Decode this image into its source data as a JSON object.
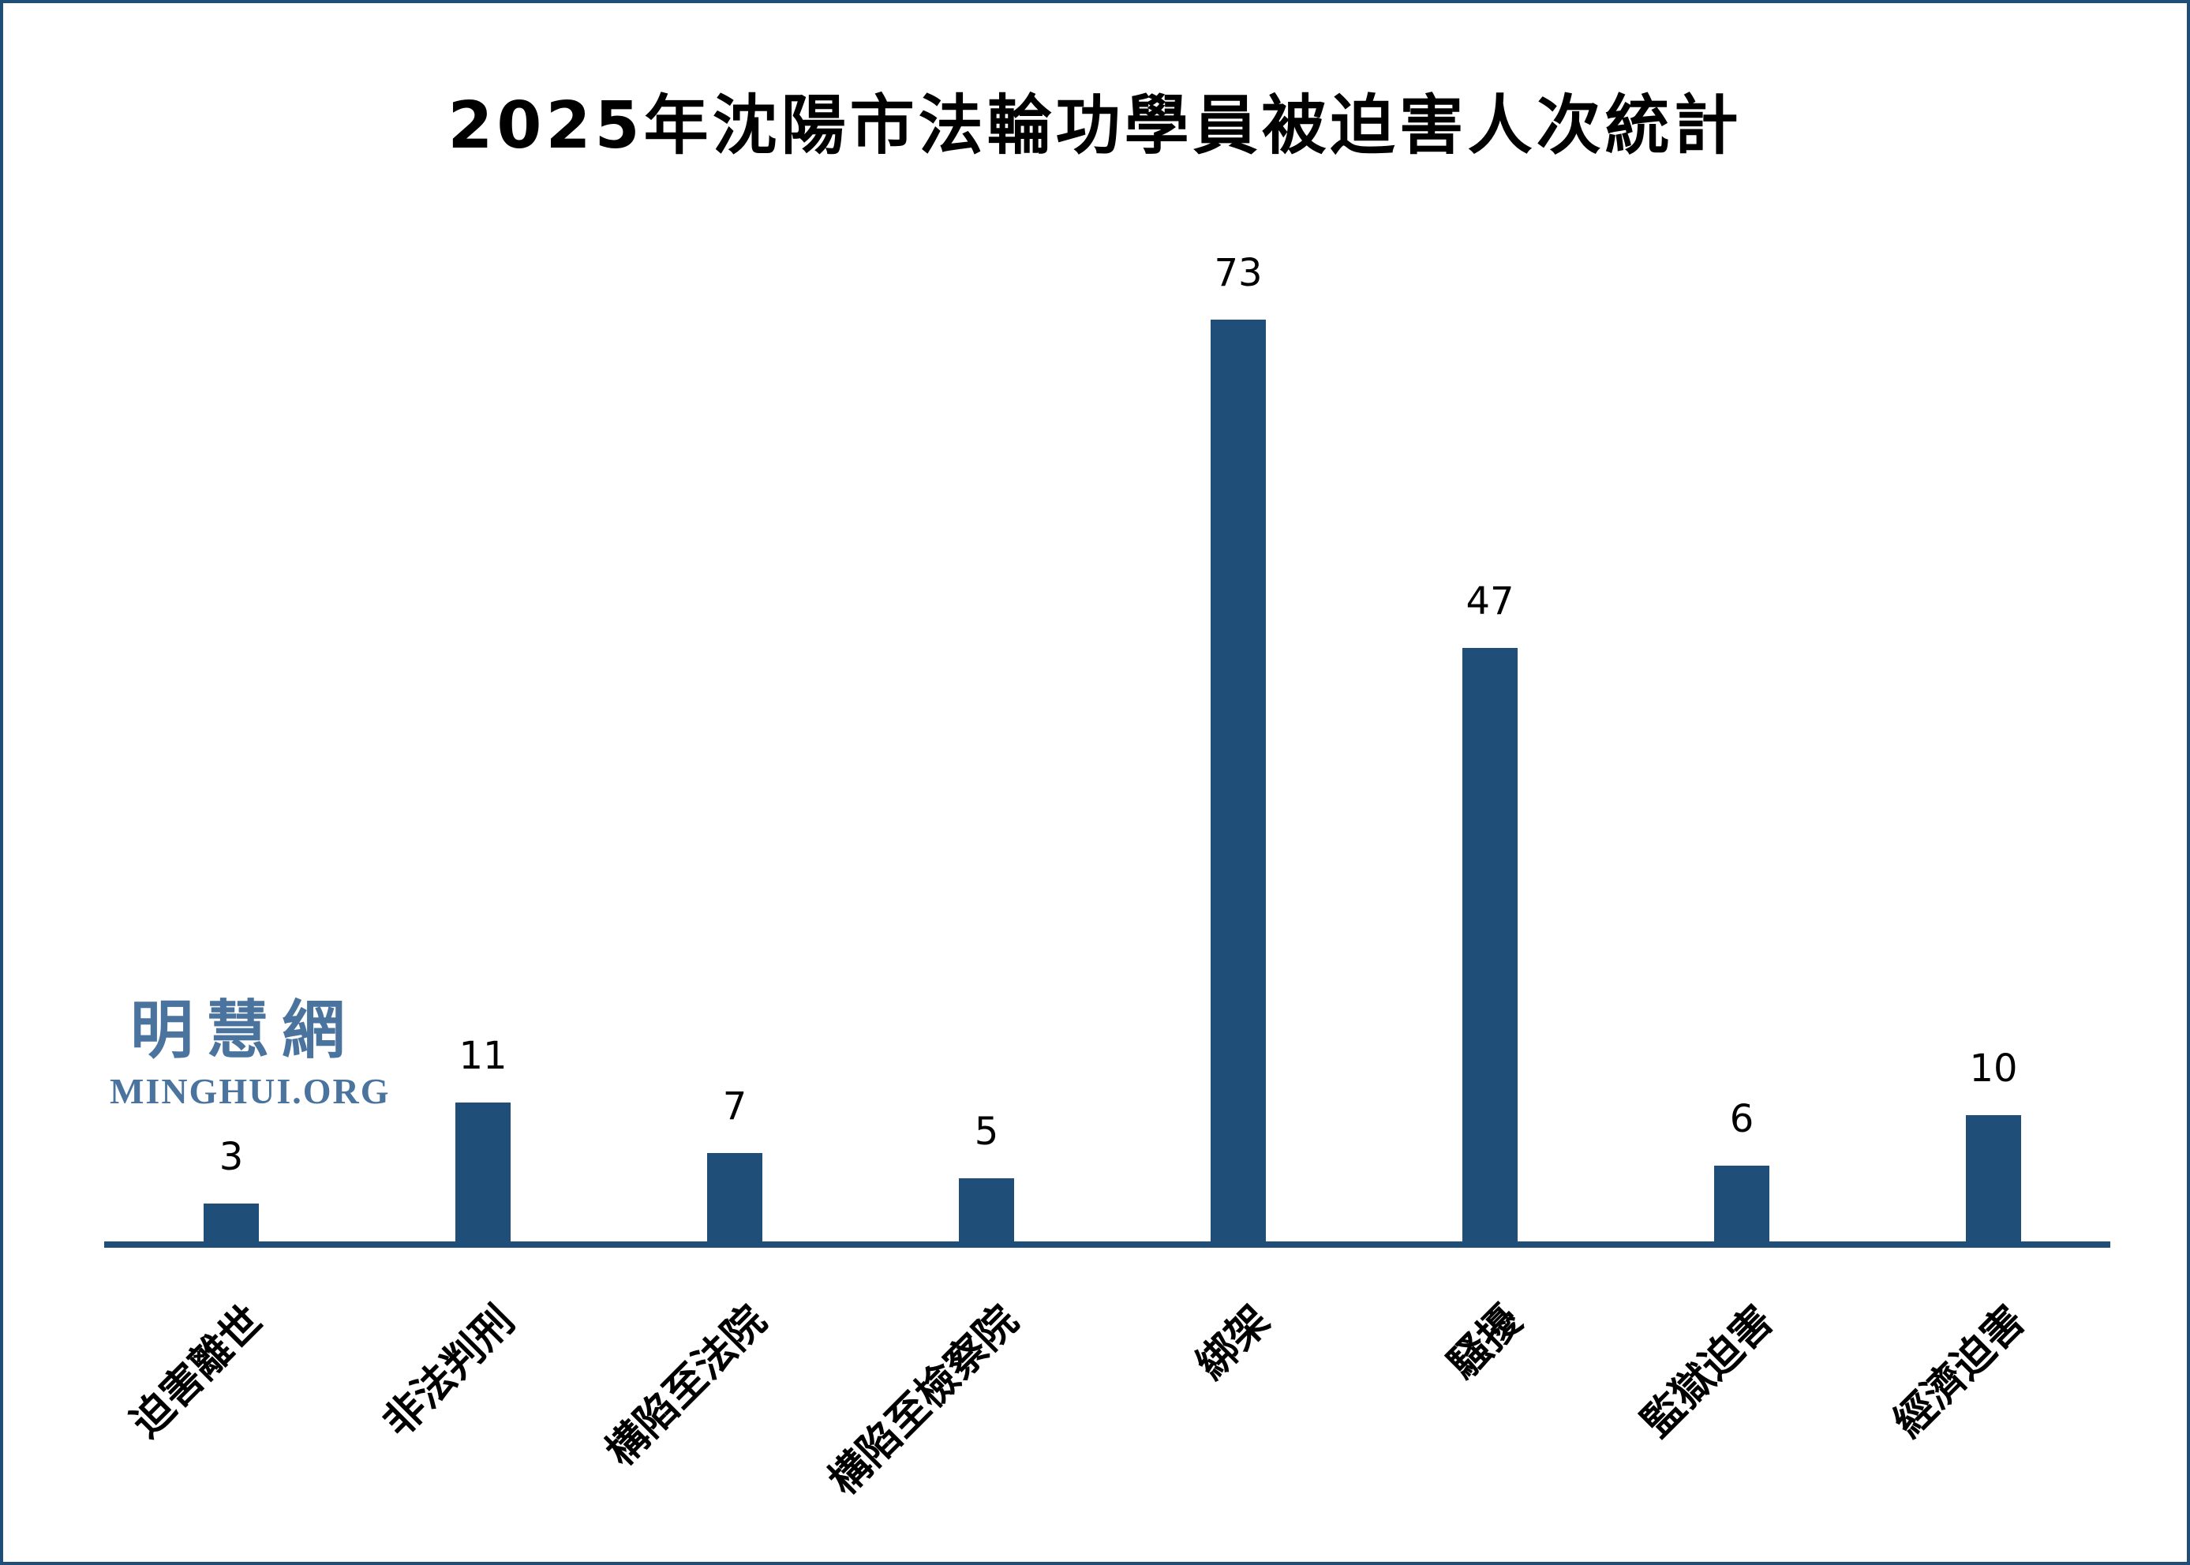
{
  "title": "2025年沈陽市法輪功學員被迫害人次統計",
  "watermark": {
    "cjk": "明慧網",
    "latin": "MINGHUI.ORG"
  },
  "colors": {
    "bar": "#1f4e79",
    "axis": "#1f4e79",
    "border": "#1f4e79",
    "watermark": "#4a739e",
    "value_label": "#000000",
    "category_label": "#000000",
    "background": "#ffffff"
  },
  "chart_data": {
    "type": "bar",
    "title": "2025年沈陽市法輪功學員被迫害人次統計",
    "categories": [
      "迫害離世",
      "非法判刑",
      "構陷至法院",
      "構陷至檢察院",
      "綁架",
      "騷擾",
      "監獄迫害",
      "經濟迫害"
    ],
    "values": [
      3,
      11,
      7,
      5,
      73,
      47,
      6,
      10
    ],
    "xlabel": "",
    "ylabel": "",
    "ylim": [
      0,
      80
    ],
    "grid": false,
    "legend": false,
    "value_labels_shown": true,
    "category_label_rotation_deg": 45,
    "y_axis_shown": false,
    "x_axis_shown": true
  }
}
